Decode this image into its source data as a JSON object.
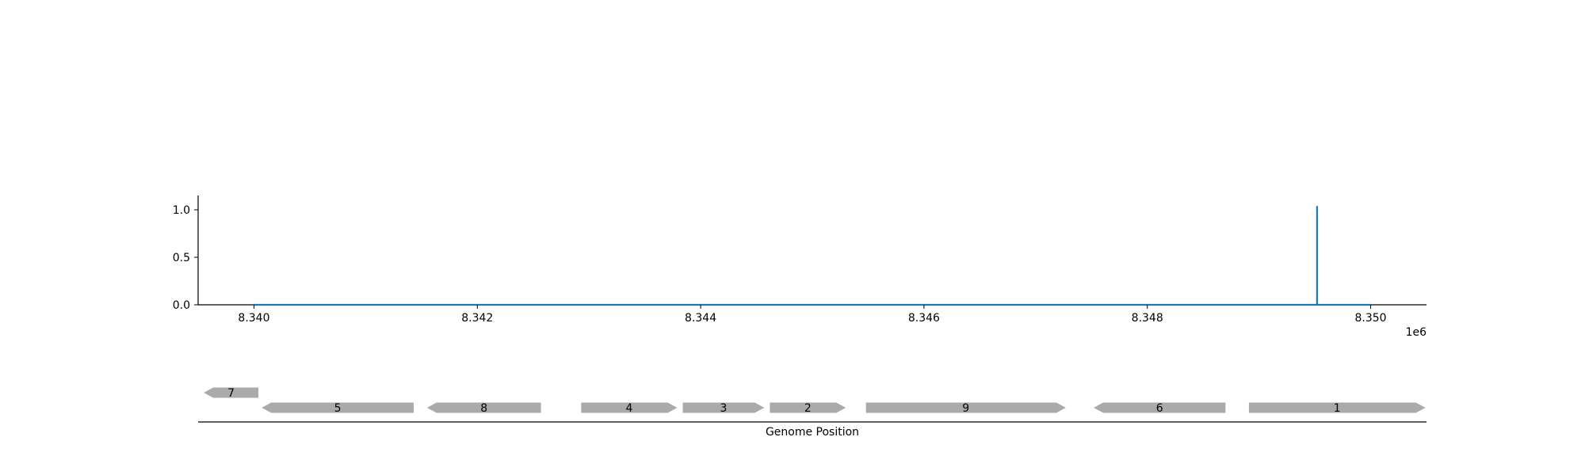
{
  "chart_data": {
    "type": "line",
    "xlabel": "Genome Position",
    "ylabel": "",
    "x_offset_label": "1e6",
    "xlim": [
      8339500,
      8350500
    ],
    "ylim": [
      0,
      1.15
    ],
    "x_ticks": [
      8.34,
      8.342,
      8.344,
      8.346,
      8.348,
      8.35
    ],
    "x_tick_labels": [
      "8.340",
      "8.342",
      "8.344",
      "8.346",
      "8.348",
      "8.350"
    ],
    "y_ticks": [
      0.0,
      0.5,
      1.0
    ],
    "y_tick_labels": [
      "0.0",
      "0.5",
      "1.0"
    ],
    "grid": false,
    "series": [
      {
        "color": "#1f77b4",
        "points": [
          [
            8340000,
            0
          ],
          [
            8349520,
            0
          ],
          [
            8349520,
            1.04
          ],
          [
            8349520,
            0
          ],
          [
            8350000,
            0
          ]
        ]
      }
    ],
    "genes": [
      {
        "label": "7",
        "start": 8339550,
        "end": 8340040,
        "strand": "-",
        "row": 1
      },
      {
        "label": "5",
        "start": 8340070,
        "end": 8341430,
        "strand": "-",
        "row": 0
      },
      {
        "label": "8",
        "start": 8341550,
        "end": 8342570,
        "strand": "-",
        "row": 0
      },
      {
        "label": "4",
        "start": 8342930,
        "end": 8343790,
        "strand": "+",
        "row": 0
      },
      {
        "label": "3",
        "start": 8343840,
        "end": 8344570,
        "strand": "+",
        "row": 0
      },
      {
        "label": "2",
        "start": 8344620,
        "end": 8345300,
        "strand": "+",
        "row": 0
      },
      {
        "label": "9",
        "start": 8345480,
        "end": 8347270,
        "strand": "+",
        "row": 0
      },
      {
        "label": "6",
        "start": 8347520,
        "end": 8348700,
        "strand": "-",
        "row": 0
      },
      {
        "label": "1",
        "start": 8348910,
        "end": 8350490,
        "strand": "+",
        "row": 0
      }
    ],
    "gene_color": "#aaaaaa"
  }
}
